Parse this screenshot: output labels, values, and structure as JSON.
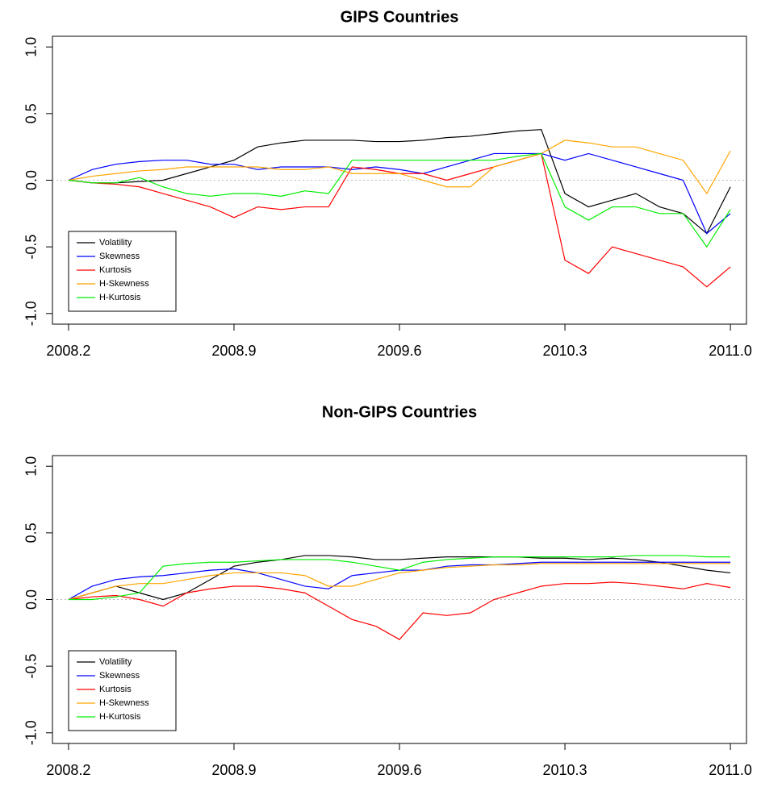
{
  "chart_data": [
    {
      "type": "line",
      "title": "GIPS Countries",
      "x": [
        2008.2,
        2008.3,
        2008.4,
        2008.5,
        2008.6,
        2008.7,
        2008.8,
        2008.9,
        2009.0,
        2009.1,
        2009.2,
        2009.3,
        2009.4,
        2009.5,
        2009.6,
        2009.7,
        2009.8,
        2009.9,
        2010.0,
        2010.1,
        2010.2,
        2010.3,
        2010.4,
        2010.5,
        2010.6,
        2010.7,
        2010.8,
        2010.9,
        2011.0
      ],
      "series": [
        {
          "name": "Volatility",
          "color": "#000000",
          "values": [
            0,
            -0.02,
            -0.02,
            -0.01,
            0,
            0.05,
            0.1,
            0.15,
            0.25,
            0.28,
            0.3,
            0.3,
            0.3,
            0.29,
            0.29,
            0.3,
            0.32,
            0.33,
            0.35,
            0.37,
            0.38,
            -0.1,
            -0.2,
            -0.15,
            -0.1,
            -0.2,
            -0.25,
            -0.4,
            -0.05
          ]
        },
        {
          "name": "Skewness",
          "color": "#0000ff",
          "values": [
            0,
            0.08,
            0.12,
            0.14,
            0.15,
            0.15,
            0.12,
            0.12,
            0.08,
            0.1,
            0.1,
            0.1,
            0.08,
            0.1,
            0.08,
            0.05,
            0.1,
            0.15,
            0.2,
            0.2,
            0.2,
            0.15,
            0.2,
            0.15,
            0.1,
            0.05,
            0,
            -0.4,
            -0.25
          ]
        },
        {
          "name": "Kurtosis",
          "color": "#ff0000",
          "values": [
            0,
            -0.02,
            -0.03,
            -0.05,
            -0.1,
            -0.15,
            -0.2,
            -0.28,
            -0.2,
            -0.22,
            -0.2,
            -0.2,
            0.1,
            0.08,
            0.05,
            0.05,
            0,
            0.05,
            0.1,
            0.15,
            0.2,
            -0.6,
            -0.7,
            -0.5,
            -0.55,
            -0.6,
            -0.65,
            -0.8,
            -0.65
          ]
        },
        {
          "name": "H-Skewness",
          "color": "#ffa500",
          "values": [
            0,
            0.03,
            0.05,
            0.07,
            0.08,
            0.1,
            0.1,
            0.1,
            0.1,
            0.08,
            0.08,
            0.1,
            0.05,
            0.05,
            0.05,
            0,
            -0.05,
            -0.05,
            0.1,
            0.15,
            0.2,
            0.3,
            0.28,
            0.25,
            0.25,
            0.2,
            0.15,
            -0.1,
            0.22
          ]
        },
        {
          "name": "H-Kurtosis",
          "color": "#00ee00",
          "values": [
            0,
            -0.02,
            -0.02,
            0.02,
            -0.05,
            -0.1,
            -0.12,
            -0.1,
            -0.1,
            -0.12,
            -0.08,
            -0.1,
            0.15,
            0.15,
            0.15,
            0.15,
            0.15,
            0.15,
            0.15,
            0.18,
            0.2,
            -0.2,
            -0.3,
            -0.2,
            -0.2,
            -0.25,
            -0.25,
            -0.5,
            -0.22
          ]
        }
      ],
      "xlim": [
        2008.132,
        2011.068
      ],
      "ylim": [
        -1.08,
        1.08
      ],
      "xticks": [
        2008.2,
        2008.9,
        2009.6,
        2010.3,
        {
          "value": 2011,
          "label": "2011.0"
        }
      ],
      "yticks": [
        {
          "value": -1,
          "label": "-1.0"
        },
        -0.5,
        {
          "value": 0,
          "label": "0.0"
        },
        0.5,
        {
          "value": 1,
          "label": "1.0"
        }
      ],
      "hline": 0,
      "legend": "bottomleft"
    },
    {
      "type": "line",
      "title": "Non-GIPS Countries",
      "x": [
        2008.2,
        2008.3,
        2008.4,
        2008.5,
        2008.6,
        2008.7,
        2008.8,
        2008.9,
        2009.0,
        2009.1,
        2009.2,
        2009.3,
        2009.4,
        2009.5,
        2009.6,
        2009.7,
        2009.8,
        2009.9,
        2010.0,
        2010.1,
        2010.2,
        2010.3,
        2010.4,
        2010.5,
        2010.6,
        2010.7,
        2010.8,
        2010.9,
        2011.0
      ],
      "series": [
        {
          "name": "Volatility",
          "color": "#000000",
          "values": [
            0,
            0.05,
            0.1,
            0.05,
            0,
            0.05,
            0.15,
            0.25,
            0.28,
            0.3,
            0.33,
            0.33,
            0.32,
            0.3,
            0.3,
            0.31,
            0.32,
            0.32,
            0.32,
            0.32,
            0.31,
            0.31,
            0.3,
            0.31,
            0.3,
            0.28,
            0.25,
            0.22,
            0.2
          ]
        },
        {
          "name": "Skewness",
          "color": "#0000ff",
          "values": [
            0,
            0.1,
            0.15,
            0.17,
            0.18,
            0.2,
            0.22,
            0.23,
            0.2,
            0.15,
            0.1,
            0.08,
            0.18,
            0.2,
            0.22,
            0.22,
            0.25,
            0.26,
            0.26,
            0.27,
            0.28,
            0.28,
            0.28,
            0.28,
            0.28,
            0.28,
            0.28,
            0.28,
            0.28
          ]
        },
        {
          "name": "Kurtosis",
          "color": "#ff0000",
          "values": [
            0,
            0.02,
            0.03,
            0,
            -0.05,
            0.05,
            0.08,
            0.1,
            0.1,
            0.08,
            0.05,
            -0.05,
            -0.15,
            -0.2,
            -0.3,
            -0.1,
            -0.12,
            -0.1,
            0,
            0.05,
            0.1,
            0.12,
            0.12,
            0.13,
            0.12,
            0.1,
            0.08,
            0.12,
            0.09
          ]
        },
        {
          "name": "H-Skewness",
          "color": "#ffa500",
          "values": [
            0,
            0.05,
            0.1,
            0.12,
            0.12,
            0.15,
            0.18,
            0.2,
            0.2,
            0.2,
            0.18,
            0.1,
            0.1,
            0.15,
            0.2,
            0.22,
            0.24,
            0.25,
            0.26,
            0.26,
            0.27,
            0.27,
            0.27,
            0.27,
            0.27,
            0.27,
            0.27,
            0.27,
            0.27
          ]
        },
        {
          "name": "H-Kurtosis",
          "color": "#00ee00",
          "values": [
            0,
            0,
            0.02,
            0.05,
            0.25,
            0.27,
            0.28,
            0.28,
            0.29,
            0.3,
            0.3,
            0.3,
            0.28,
            0.25,
            0.22,
            0.28,
            0.3,
            0.31,
            0.32,
            0.32,
            0.32,
            0.32,
            0.32,
            0.32,
            0.33,
            0.33,
            0.33,
            0.32,
            0.32
          ]
        }
      ],
      "xlim": [
        2008.132,
        2011.068
      ],
      "ylim": [
        -1.08,
        1.08
      ],
      "xticks": [
        2008.2,
        2008.9,
        2009.6,
        2010.3,
        {
          "value": 2011,
          "label": "2011.0"
        }
      ],
      "yticks": [
        {
          "value": -1,
          "label": "-1.0"
        },
        -0.5,
        {
          "value": 0,
          "label": "0.0"
        },
        0.5,
        {
          "value": 1,
          "label": "1.0"
        }
      ],
      "hline": 0,
      "legend": "bottomleft"
    }
  ]
}
